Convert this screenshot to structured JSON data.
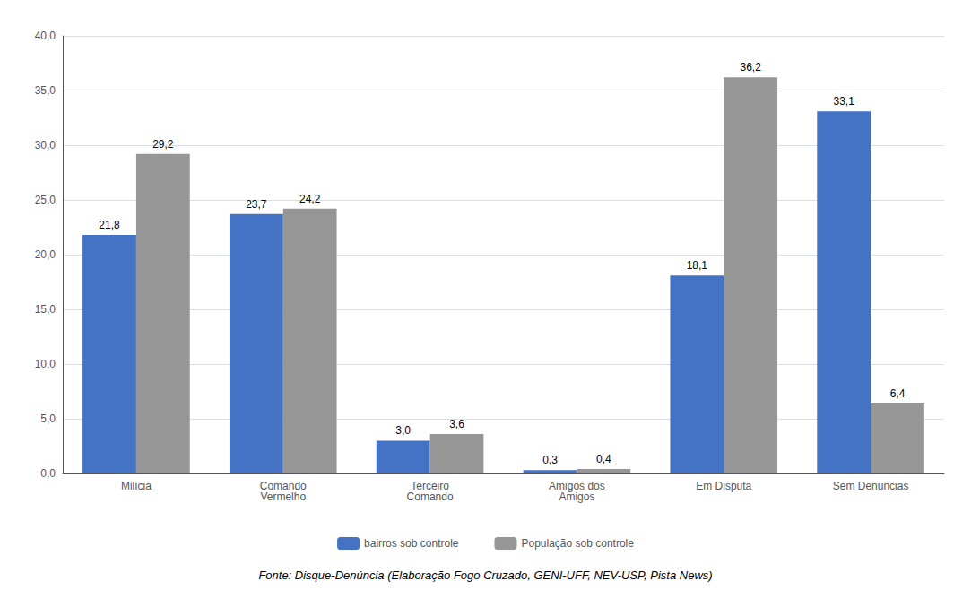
{
  "chart_data": {
    "type": "bar",
    "categories": [
      "Milícia",
      "Comando\nVermelho",
      "Terceiro\nComando",
      "Amigos dos\nAmigos",
      "Em Disputa",
      "Sem Denuncias"
    ],
    "series": [
      {
        "name": "bairros sob controle",
        "color": "#4472C4",
        "values": [
          21.8,
          23.7,
          3.0,
          0.3,
          18.1,
          33.1
        ],
        "value_labels": [
          "21,8",
          "23,7",
          "3,0",
          "0,3",
          "18,1",
          "33,1"
        ]
      },
      {
        "name": "População sob controle",
        "color": "#969696",
        "values": [
          29.2,
          24.2,
          3.6,
          0.4,
          36.2,
          6.4
        ],
        "value_labels": [
          "29,2",
          "24,2",
          "3,6",
          "0,4",
          "36,2",
          "6,4"
        ]
      }
    ],
    "ylim": [
      0,
      40
    ],
    "yticks": [
      {
        "value": 0,
        "label": "0,0"
      },
      {
        "value": 5,
        "label": "5,0"
      },
      {
        "value": 10,
        "label": "10,0"
      },
      {
        "value": 15,
        "label": "15,0"
      },
      {
        "value": 20,
        "label": "20,0"
      },
      {
        "value": 25,
        "label": "25,0"
      },
      {
        "value": 30,
        "label": "30,0"
      },
      {
        "value": 35,
        "label": "35,0"
      },
      {
        "value": 40,
        "label": "40,0"
      }
    ],
    "grid": true,
    "legend": "bottom",
    "data_labels": true,
    "annotations": [
      "Fonte: Disque-Denúncia (Elaboração Fogo Cruzado, GENI-UFF, NEV-USP, Pista News)"
    ]
  }
}
